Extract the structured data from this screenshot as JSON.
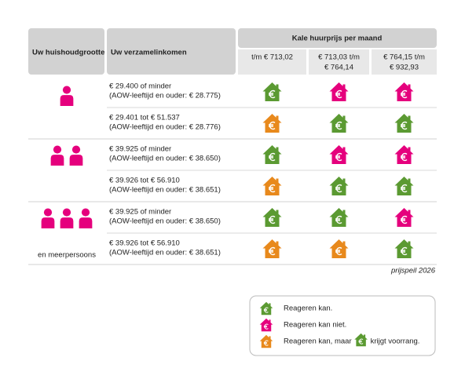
{
  "header": {
    "household": "Uw huishoudgrootte",
    "income": "Uw verzamelinkomen",
    "rent": "Kale huurprijs per maand",
    "price_bands": [
      [
        "t/m € 713,02"
      ],
      [
        "€ 713,03 t/m",
        "€ 764,14"
      ],
      [
        "€ 764,15 t/m",
        "€ 932,93"
      ]
    ]
  },
  "groups": [
    {
      "people": 1,
      "rows": [
        {
          "income": [
            "€ 29.400 of minder",
            "(AOW-leeftijd en ouder: € 28.775)"
          ],
          "cells": [
            "#5b9a32",
            "#e5007d",
            "#e5007d"
          ]
        },
        {
          "income": [
            "€ 29.401 tot € 51.537",
            "(AOW-leeftijd en ouder: € 28.776)"
          ],
          "cells": [
            "#e8891c",
            "#5b9a32",
            "#5b9a32"
          ]
        }
      ]
    },
    {
      "people": 2,
      "rows": [
        {
          "income": [
            "€ 39.925 of minder",
            "(AOW-leeftijd en ouder: € 38.650)"
          ],
          "cells": [
            "#5b9a32",
            "#e5007d",
            "#e5007d"
          ]
        },
        {
          "income": [
            "€ 39.926  tot € 56.910",
            "(AOW-leeftijd en ouder: € 38.651)"
          ],
          "cells": [
            "#e8891c",
            "#5b9a32",
            "#5b9a32"
          ]
        }
      ]
    },
    {
      "people": 3,
      "label": "en meerpersoons",
      "rows": [
        {
          "income": [
            "€ 39.925 of minder",
            "(AOW-leeftijd en ouder: € 38.650)"
          ],
          "cells": [
            "#5b9a32",
            "#5b9a32",
            "#e5007d"
          ]
        },
        {
          "income": [
            "€ 39.926 tot € 56.910",
            "(AOW-leeftijd en ouder: € 38.651)"
          ],
          "cells": [
            "#e8891c",
            "#e8891c",
            "#5b9a32"
          ]
        }
      ]
    }
  ],
  "footnote": "prijspeil 2026",
  "person_color": "#e5007d",
  "legend": [
    {
      "color": "#5b9a32",
      "text": "Reageren kan."
    },
    {
      "color": "#e5007d",
      "text": "Reageren kan niet."
    },
    {
      "color": "#e8891c",
      "text": "Reageren kan, maar",
      "inline_color": "#5b9a32",
      "text_after": "krijgt voorrang."
    }
  ]
}
